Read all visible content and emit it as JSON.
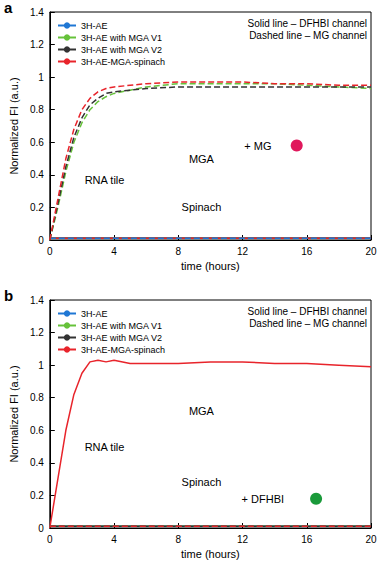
{
  "chart_data": [
    {
      "type": "line",
      "panel_label": "a",
      "x_label": "time (hours)",
      "y_label": "Normalized FI (a.u.)",
      "x": [
        0,
        0.5,
        1,
        1.5,
        2,
        2.5,
        3,
        3.5,
        4,
        5,
        6,
        8,
        10,
        12,
        14,
        16,
        18,
        20
      ],
      "xlim": [
        0,
        20
      ],
      "xticks": [
        0,
        4,
        8,
        12,
        16,
        20
      ],
      "ylim": [
        0,
        1.4
      ],
      "yticks": [
        0,
        0.2,
        0.4,
        0.6,
        0.8,
        1,
        1.2,
        1.4
      ],
      "legend": "upper left",
      "annotations": [
        "Solid line – DFHBI channel",
        "Dashed line – MG channel",
        "MGA",
        "RNA tile",
        "Spinach",
        "+ MG"
      ],
      "series": [
        {
          "name": "3H-AE",
          "color": "#1f77d4",
          "line_style": "solid",
          "values": [
            0.01,
            0.01,
            0.01,
            0.01,
            0.01,
            0.01,
            0.01,
            0.01,
            0.01,
            0.01,
            0.01,
            0.01,
            0.01,
            0.01,
            0.01,
            0.01,
            0.01,
            0.01
          ]
        },
        {
          "name": "3H-AE with MGA V1",
          "color": "#66c23a",
          "line_style": "solid",
          "values": [
            0.01,
            0.01,
            0.01,
            0.01,
            0.01,
            0.01,
            0.01,
            0.01,
            0.01,
            0.01,
            0.01,
            0.01,
            0.01,
            0.01,
            0.01,
            0.01,
            0.01,
            0.01
          ]
        },
        {
          "name": "3H-AE with MGA V2",
          "color": "#333333",
          "line_style": "solid",
          "values": [
            0.01,
            0.01,
            0.01,
            0.01,
            0.01,
            0.01,
            0.01,
            0.01,
            0.01,
            0.01,
            0.01,
            0.01,
            0.01,
            0.01,
            0.01,
            0.01,
            0.01,
            0.01
          ]
        },
        {
          "name": "3H-AE-MGA-spinach",
          "color": "#e8242b",
          "line_style": "solid",
          "values": [
            0.01,
            0.01,
            0.01,
            0.01,
            0.01,
            0.01,
            0.01,
            0.01,
            0.01,
            0.01,
            0.01,
            0.01,
            0.01,
            0.01,
            0.01,
            0.01,
            0.01,
            0.01
          ]
        },
        {
          "name": "3H-AE",
          "color": "#1f77d4",
          "line_style": "dashed",
          "values": [
            0.01,
            0.01,
            0.01,
            0.01,
            0.01,
            0.01,
            0.01,
            0.01,
            0.01,
            0.01,
            0.01,
            0.01,
            0.01,
            0.01,
            0.01,
            0.01,
            0.01,
            0.01
          ]
        },
        {
          "name": "3H-AE with MGA V1",
          "color": "#66c23a",
          "line_style": "dashed",
          "values": [
            0,
            0.2,
            0.42,
            0.6,
            0.72,
            0.8,
            0.85,
            0.88,
            0.9,
            0.92,
            0.94,
            0.96,
            0.96,
            0.96,
            0.96,
            0.95,
            0.94,
            0.93
          ]
        },
        {
          "name": "3H-AE with MGA V2",
          "color": "#333333",
          "line_style": "dashed",
          "values": [
            0,
            0.22,
            0.45,
            0.63,
            0.75,
            0.83,
            0.87,
            0.9,
            0.91,
            0.92,
            0.93,
            0.94,
            0.94,
            0.94,
            0.94,
            0.94,
            0.94,
            0.94
          ]
        },
        {
          "name": "3H-AE-MGA-spinach",
          "color": "#e8242b",
          "line_style": "dashed",
          "values": [
            0,
            0.25,
            0.5,
            0.68,
            0.8,
            0.87,
            0.91,
            0.93,
            0.94,
            0.95,
            0.96,
            0.97,
            0.97,
            0.97,
            0.96,
            0.96,
            0.95,
            0.95
          ]
        }
      ]
    },
    {
      "type": "line",
      "panel_label": "b",
      "x_label": "time (hours)",
      "y_label": "Normalized FI (a.u.)",
      "x": [
        0,
        0.5,
        1,
        1.5,
        2,
        2.5,
        3,
        3.5,
        4,
        5,
        6,
        8,
        10,
        12,
        14,
        16,
        18,
        20
      ],
      "xlim": [
        0,
        20
      ],
      "xticks": [
        0,
        4,
        8,
        12,
        16,
        20
      ],
      "ylim": [
        0,
        1.4
      ],
      "yticks": [
        0,
        0.2,
        0.4,
        0.6,
        0.8,
        1,
        1.2,
        1.4
      ],
      "legend": "upper left",
      "annotations": [
        "Solid line – DFHBI channel",
        "Dashed line – MG channel",
        "MGA",
        "RNA tile",
        "Spinach",
        "+ DFHBI"
      ],
      "series": [
        {
          "name": "3H-AE",
          "color": "#1f77d4",
          "line_style": "solid",
          "values": [
            0.01,
            0.01,
            0.01,
            0.01,
            0.01,
            0.01,
            0.01,
            0.01,
            0.01,
            0.01,
            0.01,
            0.01,
            0.01,
            0.01,
            0.01,
            0.01,
            0.01,
            0.01
          ]
        },
        {
          "name": "3H-AE with MGA V1",
          "color": "#66c23a",
          "line_style": "solid",
          "values": [
            0.01,
            0.01,
            0.01,
            0.01,
            0.01,
            0.01,
            0.01,
            0.01,
            0.01,
            0.01,
            0.01,
            0.01,
            0.01,
            0.01,
            0.01,
            0.01,
            0.01,
            0.01
          ]
        },
        {
          "name": "3H-AE with MGA V2",
          "color": "#333333",
          "line_style": "solid",
          "values": [
            0.01,
            0.01,
            0.01,
            0.01,
            0.01,
            0.01,
            0.01,
            0.01,
            0.01,
            0.01,
            0.01,
            0.01,
            0.01,
            0.01,
            0.01,
            0.01,
            0.01,
            0.01
          ]
        },
        {
          "name": "3H-AE-MGA-spinach",
          "color": "#e8242b",
          "line_style": "solid",
          "values": [
            0,
            0.3,
            0.6,
            0.82,
            0.95,
            1.02,
            1.03,
            1.02,
            1.03,
            1.01,
            1.01,
            1.01,
            1.02,
            1.02,
            1.01,
            1.01,
            1.0,
            0.99
          ]
        },
        {
          "name": "3H-AE",
          "color": "#1f77d4",
          "line_style": "dashed",
          "values": [
            0.01,
            0.01,
            0.01,
            0.01,
            0.01,
            0.01,
            0.01,
            0.01,
            0.01,
            0.01,
            0.01,
            0.01,
            0.01,
            0.01,
            0.01,
            0.01,
            0.01,
            0.01
          ]
        },
        {
          "name": "3H-AE with MGA V1",
          "color": "#66c23a",
          "line_style": "dashed",
          "values": [
            0.01,
            0.01,
            0.01,
            0.01,
            0.01,
            0.01,
            0.01,
            0.01,
            0.01,
            0.01,
            0.01,
            0.01,
            0.01,
            0.01,
            0.01,
            0.01,
            0.01,
            0.01
          ]
        },
        {
          "name": "3H-AE with MGA V2",
          "color": "#333333",
          "line_style": "dashed",
          "values": [
            0.01,
            0.01,
            0.01,
            0.01,
            0.01,
            0.01,
            0.01,
            0.01,
            0.01,
            0.01,
            0.01,
            0.01,
            0.01,
            0.01,
            0.01,
            0.01,
            0.01,
            0.01
          ]
        },
        {
          "name": "3H-AE-MGA-spinach",
          "color": "#e8242b",
          "line_style": "dashed",
          "values": [
            0.01,
            0.01,
            0.01,
            0.01,
            0.01,
            0.01,
            0.01,
            0.01,
            0.01,
            0.01,
            0.01,
            0.01,
            0.01,
            0.01,
            0.01,
            0.01,
            0.01,
            0.01
          ]
        }
      ]
    }
  ]
}
